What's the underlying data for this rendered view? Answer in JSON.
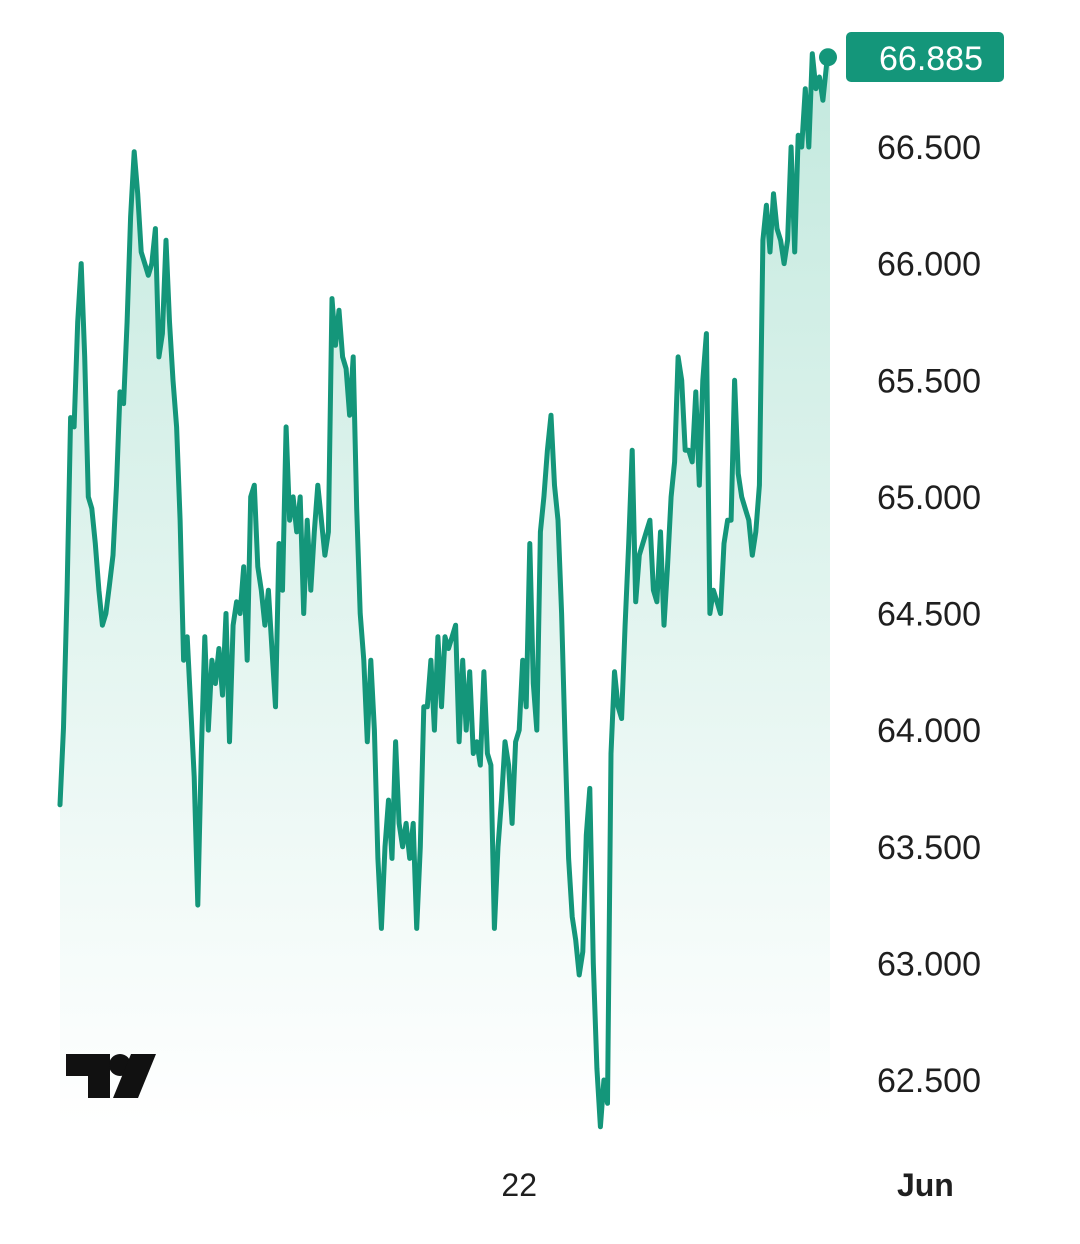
{
  "colors": {
    "line": "#14967a",
    "area_top": "#c3e9de",
    "area_bottom": "#ffffff",
    "badge": "#14967a",
    "badge_text": "#ffffff",
    "tick_text": "#1f1f1f",
    "logo": "#111111"
  },
  "logo": {
    "icon": "tradingview-logo-icon"
  },
  "last_price": {
    "label": "66.885",
    "value": 66.885
  },
  "chart_data": {
    "type": "area",
    "title": "",
    "xlabel": "",
    "ylabel": "",
    "grid": false,
    "legend": "none",
    "ylim": [
      62.3,
      66.95
    ],
    "y_ticks": [
      "62.500",
      "63.000",
      "63.500",
      "64.000",
      "64.500",
      "65.000",
      "65.500",
      "66.000",
      "66.500"
    ],
    "x_ticks": [
      {
        "label": "22",
        "bold": false,
        "index": 130
      },
      {
        "label": "Jun",
        "bold": true,
        "index": 245
      }
    ],
    "series": [
      {
        "values": [
          63.68,
          64.01,
          64.6,
          65.34,
          65.3,
          65.75,
          66.0,
          65.6,
          65.0,
          64.95,
          64.8,
          64.6,
          64.45,
          64.5,
          64.62,
          64.75,
          65.05,
          65.45,
          65.4,
          65.75,
          66.2,
          66.48,
          66.3,
          66.05,
          66.0,
          65.95,
          66.0,
          66.15,
          65.6,
          65.7,
          66.1,
          65.75,
          65.5,
          65.3,
          64.9,
          64.3,
          64.4,
          64.1,
          63.8,
          63.25,
          63.9,
          64.4,
          64.0,
          64.3,
          64.2,
          64.35,
          64.15,
          64.5,
          63.95,
          64.45,
          64.55,
          64.5,
          64.7,
          64.3,
          65.0,
          65.05,
          64.7,
          64.6,
          64.45,
          64.6,
          64.35,
          64.1,
          64.8,
          64.6,
          65.3,
          64.9,
          65.0,
          64.85,
          65.0,
          64.5,
          64.9,
          64.6,
          64.85,
          65.05,
          64.9,
          64.75,
          64.85,
          65.85,
          65.65,
          65.8,
          65.6,
          65.55,
          65.35,
          65.6,
          64.95,
          64.5,
          64.3,
          63.95,
          64.3,
          64.0,
          63.45,
          63.15,
          63.5,
          63.7,
          63.45,
          63.95,
          63.6,
          63.5,
          63.6,
          63.45,
          63.6,
          63.15,
          63.5,
          64.1,
          64.1,
          64.3,
          64.0,
          64.4,
          64.1,
          64.4,
          64.35,
          64.4,
          64.45,
          63.95,
          64.3,
          64.0,
          64.25,
          63.9,
          63.95,
          63.85,
          64.25,
          63.9,
          63.85,
          63.15,
          63.5,
          63.7,
          63.95,
          63.85,
          63.6,
          63.95,
          64.0,
          64.3,
          64.1,
          64.8,
          64.2,
          64.0,
          64.85,
          65.0,
          65.2,
          65.35,
          65.05,
          64.9,
          64.5,
          63.95,
          63.45,
          63.2,
          63.1,
          62.95,
          63.05,
          63.55,
          63.75,
          63.0,
          62.55,
          62.3,
          62.5,
          62.4,
          63.9,
          64.25,
          64.1,
          64.05,
          64.45,
          64.8,
          65.2,
          64.55,
          64.75,
          64.8,
          64.85,
          64.9,
          64.6,
          64.55,
          64.85,
          64.45,
          64.7,
          65.0,
          65.15,
          65.6,
          65.5,
          65.2,
          65.2,
          65.15,
          65.45,
          65.05,
          65.5,
          65.7,
          64.5,
          64.6,
          64.55,
          64.5,
          64.8,
          64.9,
          64.9,
          65.5,
          65.1,
          65.0,
          64.95,
          64.9,
          64.75,
          64.85,
          65.05,
          66.1,
          66.25,
          66.05,
          66.3,
          66.15,
          66.1,
          66.0,
          66.1,
          66.5,
          66.05,
          66.55,
          66.5,
          66.75,
          66.5,
          66.9,
          66.75,
          66.8,
          66.7,
          66.85,
          66.885
        ]
      }
    ]
  }
}
